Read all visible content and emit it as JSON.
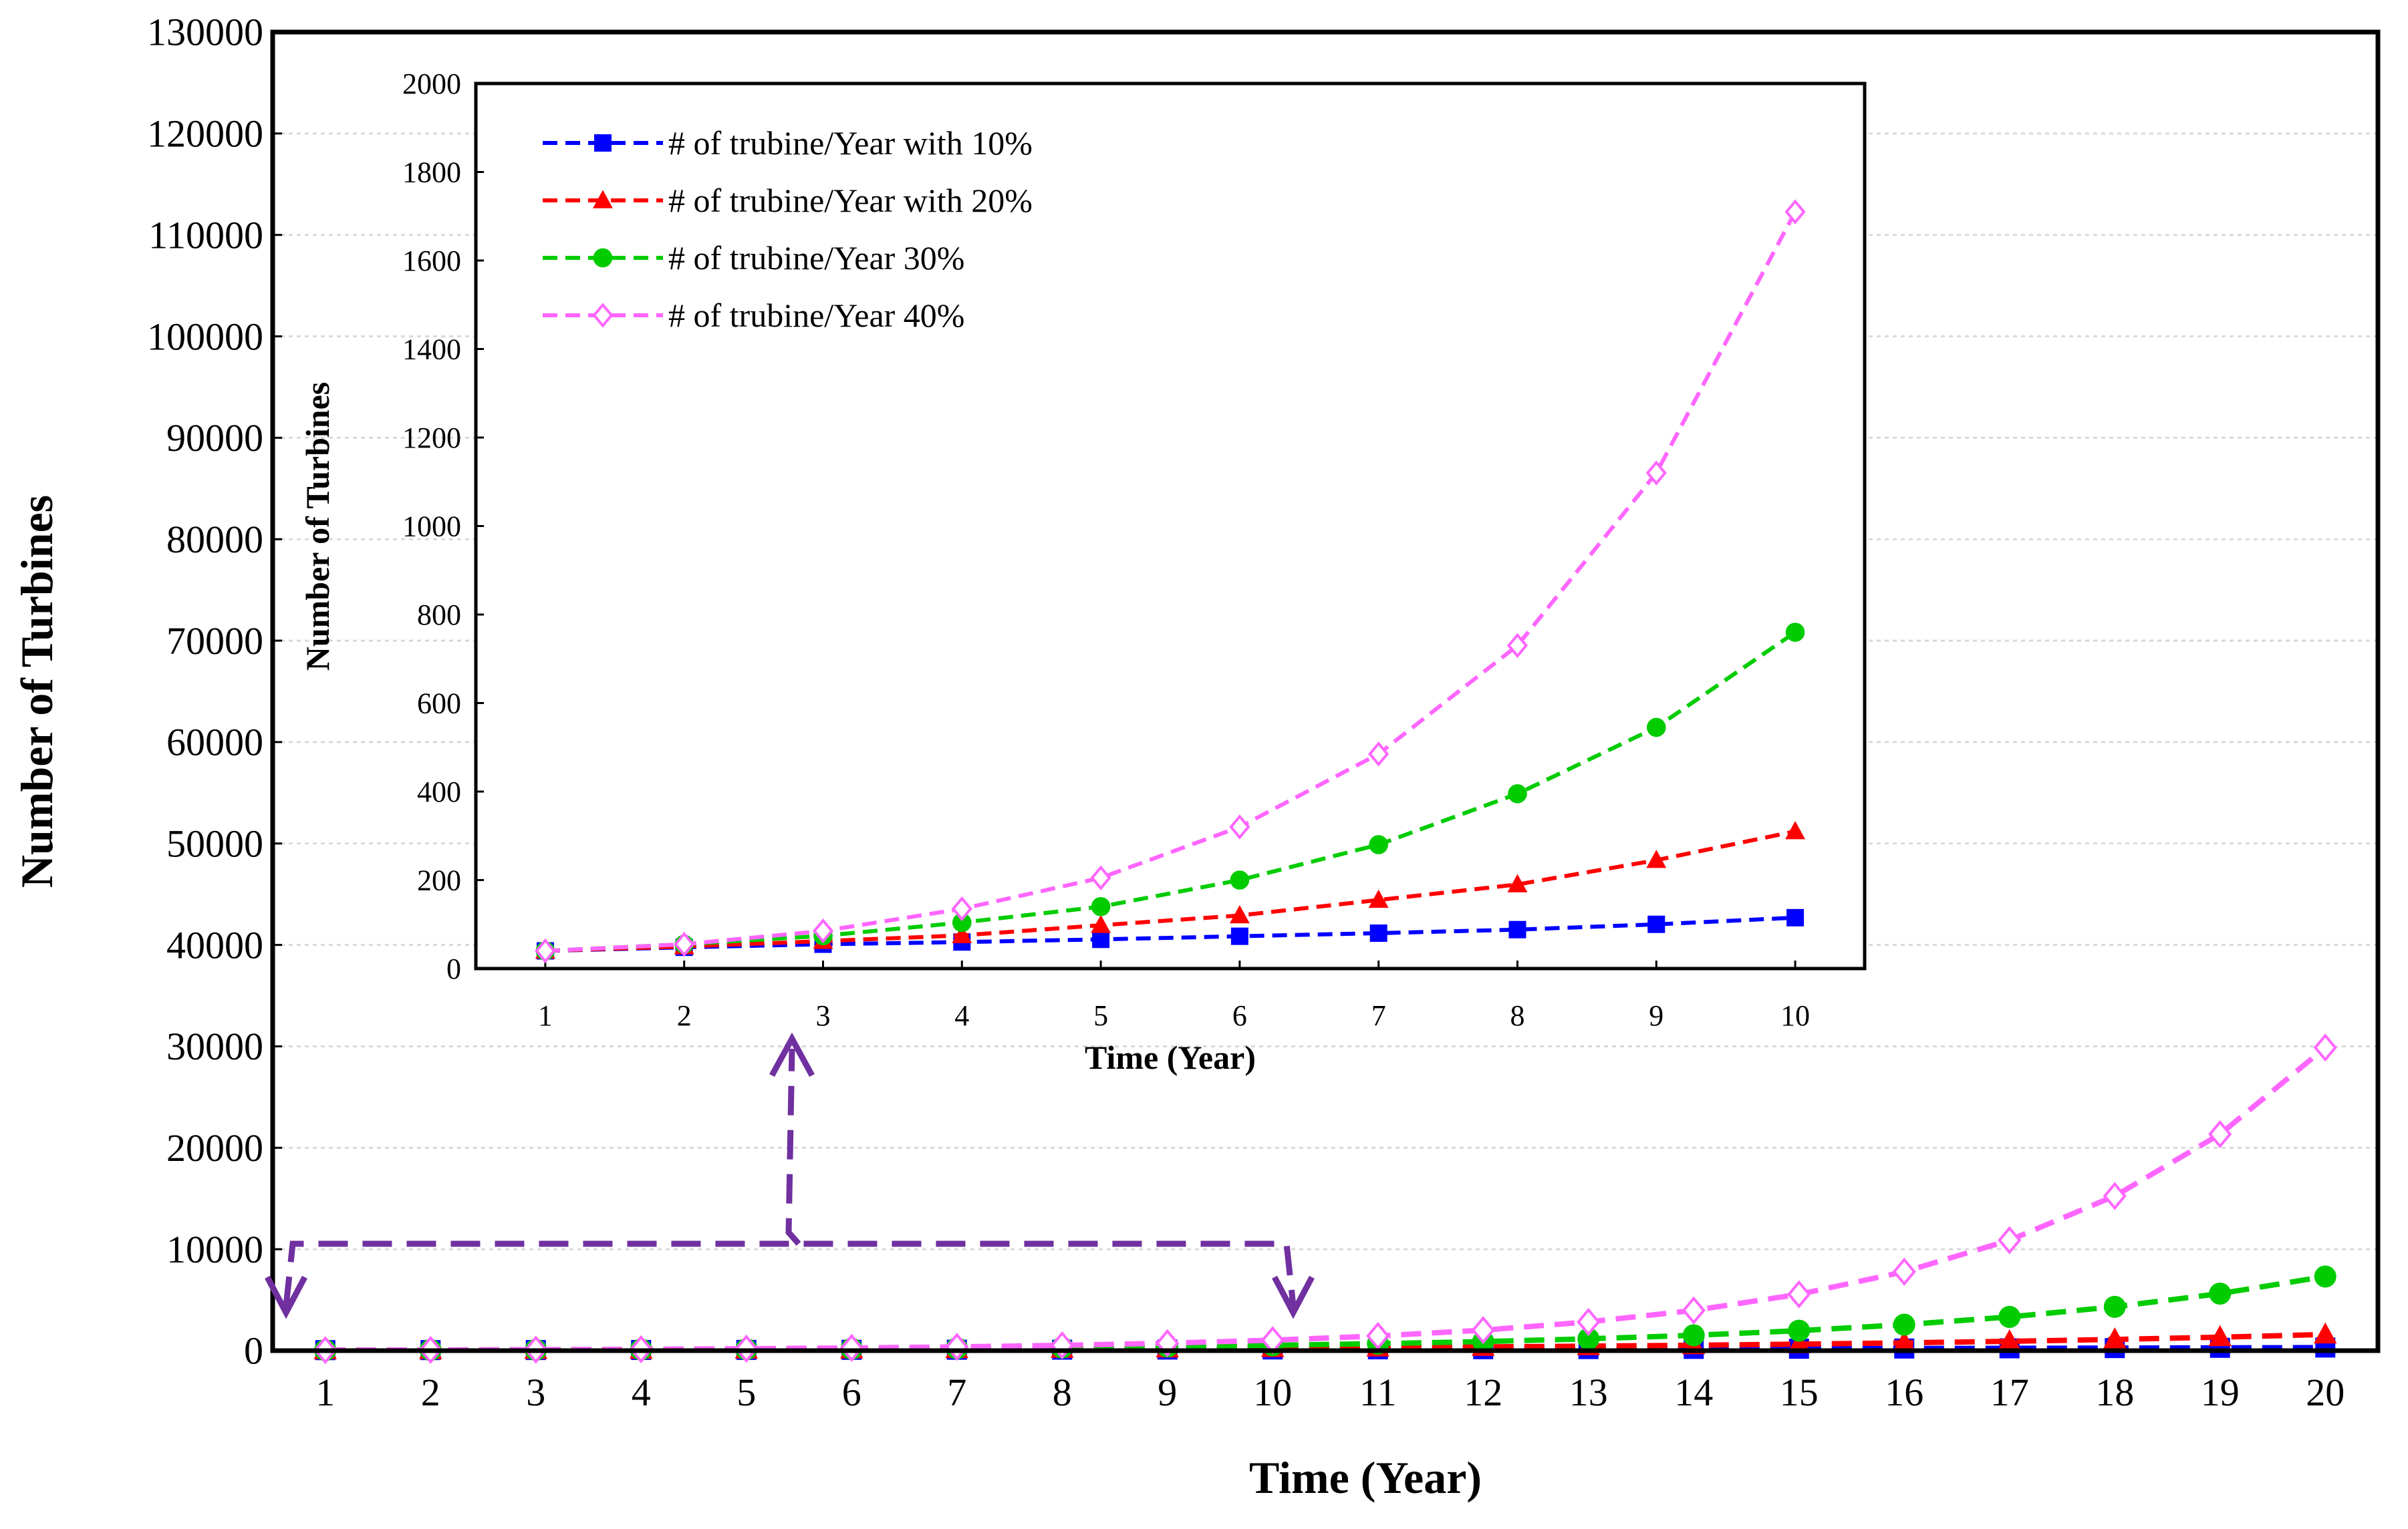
{
  "chart_data": [
    {
      "name": "main",
      "type": "line",
      "xlabel": "Time (Year)",
      "ylabel": "Number of Turbines",
      "xlim": [
        0.5,
        20.5
      ],
      "ylim": [
        0,
        130000
      ],
      "x_ticks": [
        "1",
        "2",
        "3",
        "4",
        "5",
        "6",
        "7",
        "8",
        "9",
        "10",
        "11",
        "12",
        "13",
        "14",
        "15",
        "16",
        "17",
        "18",
        "19",
        "20"
      ],
      "y_ticks": [
        "0",
        "10000",
        "20000",
        "30000",
        "40000",
        "50000",
        "60000",
        "70000",
        "80000",
        "90000",
        "100000",
        "110000",
        "120000",
        "130000"
      ],
      "grid": true,
      "x": [
        1,
        2,
        3,
        4,
        5,
        6,
        7,
        8,
        9,
        10,
        11,
        12,
        13,
        14,
        15,
        16,
        17,
        18,
        19,
        20
      ],
      "series": [
        {
          "name": "# of trubine/Year with 10%",
          "color": "#0000ff",
          "marker": "square",
          "values": [
            50,
            55,
            61,
            67,
            73,
            81,
            89,
            97,
            107,
            118,
            130,
            143,
            157,
            173,
            190,
            209,
            230,
            253,
            278,
            306
          ]
        },
        {
          "name": "# of trubine/Year with 20%",
          "color": "#ff0000",
          "marker": "triangle",
          "values": [
            50,
            60,
            72,
            86,
            104,
            124,
            149,
            179,
            215,
            258,
            310,
            372,
            446,
            535,
            642,
            770,
            924,
            1109,
            1331,
            1597
          ]
        },
        {
          "name": "# of trubine/Year 30%",
          "color": "#00cc00",
          "marker": "circle",
          "values": [
            50,
            65,
            85,
            110,
            143,
            186,
            241,
            314,
            408,
            530,
            689,
            896,
            1165,
            1514,
            1969,
            2559,
            3327,
            4325,
            5623,
            7310
          ]
        },
        {
          "name": "# of trubine/Year   40%",
          "color": "#ff66ff",
          "marker": "diamond",
          "values": [
            50,
            70,
            98,
            137,
            192,
            269,
            376,
            527,
            738,
            1033,
            1446,
            2025,
            2834,
            3968,
            5556,
            7778,
            10889,
            15245,
            21343,
            29880
          ]
        }
      ]
    },
    {
      "name": "inset",
      "type": "line",
      "xlabel": "Time (Year)",
      "ylabel": "Number of Turbines",
      "xlim": [
        0.5,
        10.5
      ],
      "ylim": [
        0,
        2000
      ],
      "x_ticks": [
        "1",
        "2",
        "3",
        "4",
        "5",
        "6",
        "7",
        "8",
        "9",
        "10"
      ],
      "y_ticks": [
        "0",
        "200",
        "400",
        "600",
        "800",
        "1000",
        "1200",
        "1400",
        "1600",
        "1800",
        "2000"
      ],
      "grid": false,
      "legend": "top-left",
      "x": [
        1,
        2,
        3,
        4,
        5,
        6,
        7,
        8,
        9,
        10
      ],
      "series": [
        {
          "name": "# of trubine/Year with 10%",
          "color": "#0000ff",
          "marker": "square",
          "values": [
            40,
            48,
            55,
            60,
            66,
            73,
            80,
            88,
            100,
            115
          ]
        },
        {
          "name": "# of trubine/Year with 20%",
          "color": "#ff0000",
          "marker": "triangle",
          "values": [
            40,
            50,
            62,
            75,
            98,
            120,
            155,
            190,
            245,
            310
          ]
        },
        {
          "name": "# of trubine/Year 30%",
          "color": "#00cc00",
          "marker": "circle",
          "values": [
            40,
            55,
            74,
            104,
            140,
            200,
            280,
            395,
            545,
            760
          ]
        },
        {
          "name": "# of trubine/Year   40%",
          "color": "#ff66ff",
          "marker": "diamond",
          "values": [
            40,
            55,
            85,
            135,
            205,
            320,
            485,
            730,
            1120,
            1710
          ]
        }
      ]
    }
  ]
}
